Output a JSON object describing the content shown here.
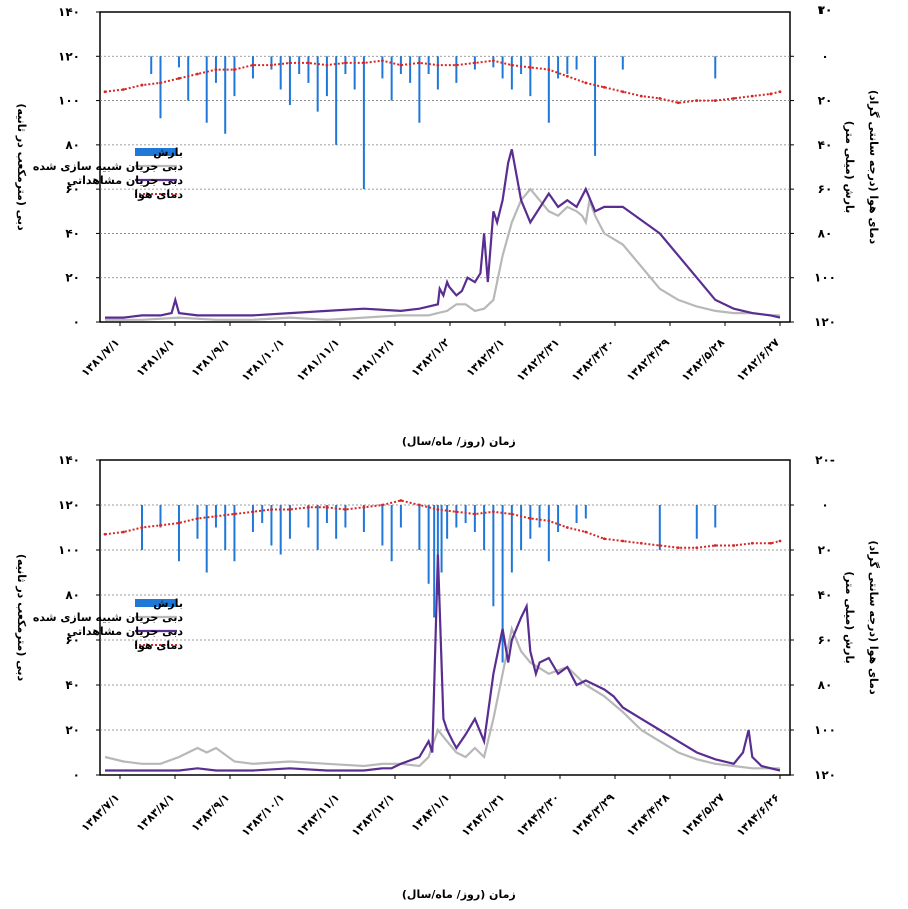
{
  "chart_data": [
    {
      "type": "line",
      "x_tick_labels": [
        "۱۳۸۱/۷/۱",
        "۱۳۸۱/۸/۱",
        "۱۳۸۱/۹/۱",
        "۱۳۸۱/۱۰/۱",
        "۱۳۸۱/۱۱/۱",
        "۱۳۸۱/۱۲/۱",
        "۱۳۸۲/۱/۲",
        "۱۳۸۲/۲/۱",
        "۱۳۸۲/۲/۳۱",
        "۱۳۸۲/۳/۳۰",
        "۱۳۸۲/۴/۲۹",
        "۱۳۸۲/۵/۲۸",
        "۱۳۸۲/۶/۲۷"
      ],
      "xlabel": "زمان (روز/ ماه/سال)",
      "y_left": {
        "label": "دبی (مترمکعب در ثانیه)",
        "ticks": [
          "۰",
          "۲۰",
          "۴۰",
          "۶۰",
          "۸۰",
          "۱۰۰",
          "۱۲۰",
          "۱۴۰"
        ],
        "range": [
          0,
          140
        ]
      },
      "y_right_precip": {
        "label": "بارش (میلی متر)",
        "ticks": [
          "۰",
          "۲۰",
          "۴۰",
          "۶۰",
          "۸۰",
          "۱۰۰",
          "۱۲۰"
        ],
        "range": [
          0,
          120
        ],
        "inverted": true
      },
      "y_right_temp": {
        "label": "دمای هوا (درجه سانتی گراد)",
        "ticks": [
          "۲۰",
          "۱۰"
        ],
        "range": [
          -10,
          30
        ]
      },
      "legend": [
        {
          "label": "بارش",
          "color": "#1f78d8",
          "style": "bar"
        },
        {
          "label": "دبی جریان شبیه سازی شده",
          "color": "#b8b8b8",
          "style": "line"
        },
        {
          "label": "دبی جریان مشاهداتی",
          "color": "#5a2d91",
          "style": "line"
        },
        {
          "label": "دمای هوا",
          "color": "#d62728",
          "style": "dotted"
        }
      ],
      "legend_position": "middle-left",
      "series": [
        {
          "key": "observed",
          "x": [
            0,
            10,
            20,
            30,
            36,
            38,
            40,
            50,
            60,
            80,
            100,
            120,
            140,
            160,
            170,
            180,
            181,
            183,
            185,
            186,
            188,
            190,
            193,
            196,
            200,
            203,
            205,
            207,
            210,
            212,
            215,
            218,
            220,
            225,
            230,
            240,
            245,
            250,
            255,
            260,
            265,
            270,
            280,
            290,
            300,
            310,
            320,
            330,
            340,
            350,
            360,
            365
          ],
          "values": [
            2,
            2,
            3,
            3,
            4,
            10,
            4,
            3,
            3,
            3,
            4,
            5,
            6,
            5,
            6,
            8,
            15,
            12,
            18,
            16,
            14,
            12,
            14,
            20,
            18,
            22,
            40,
            18,
            50,
            45,
            55,
            72,
            78,
            55,
            45,
            58,
            52,
            55,
            52,
            60,
            50,
            52,
            52,
            46,
            40,
            30,
            20,
            10,
            6,
            4,
            3,
            2
          ]
        },
        {
          "key": "simulated",
          "x": [
            0,
            20,
            40,
            60,
            80,
            100,
            120,
            140,
            160,
            175,
            180,
            185,
            190,
            195,
            200,
            205,
            210,
            215,
            220,
            225,
            230,
            235,
            240,
            245,
            250,
            255,
            258,
            260,
            262,
            265,
            270,
            280,
            290,
            300,
            310,
            320,
            330,
            340,
            350,
            360,
            365
          ],
          "values": [
            1,
            1,
            2,
            1,
            1,
            2,
            1,
            2,
            3,
            3,
            4,
            5,
            8,
            8,
            5,
            6,
            10,
            30,
            45,
            55,
            60,
            55,
            50,
            48,
            52,
            50,
            48,
            45,
            55,
            48,
            40,
            35,
            25,
            15,
            10,
            7,
            5,
            4,
            4,
            3,
            3
          ]
        },
        {
          "key": "temperature",
          "x": [
            0,
            10,
            20,
            30,
            40,
            50,
            60,
            70,
            80,
            90,
            100,
            110,
            120,
            130,
            140,
            150,
            160,
            170,
            180,
            190,
            200,
            210,
            220,
            230,
            240,
            250,
            260,
            270,
            280,
            290,
            300,
            310,
            320,
            330,
            340,
            350,
            360,
            365
          ],
          "values": [
            16,
            15,
            13,
            12,
            10,
            8,
            6,
            6,
            4,
            4,
            3,
            3,
            4,
            3,
            3,
            2,
            4,
            3,
            4,
            4,
            3,
            2,
            4,
            5,
            6,
            9,
            12,
            14,
            16,
            18,
            19,
            21,
            20,
            20,
            19,
            18,
            17,
            16
          ]
        },
        {
          "key": "precipitation",
          "x": [
            25,
            30,
            40,
            45,
            55,
            60,
            65,
            70,
            80,
            90,
            95,
            100,
            105,
            110,
            115,
            120,
            125,
            130,
            135,
            140,
            150,
            155,
            160,
            165,
            170,
            175,
            180,
            190,
            200,
            210,
            215,
            220,
            225,
            230,
            240,
            245,
            250,
            255,
            265,
            280,
            330
          ],
          "values": [
            8,
            28,
            5,
            20,
            30,
            12,
            35,
            18,
            10,
            6,
            15,
            22,
            8,
            12,
            25,
            18,
            40,
            8,
            15,
            60,
            10,
            20,
            8,
            12,
            30,
            8,
            15,
            12,
            6,
            5,
            10,
            15,
            8,
            18,
            30,
            10,
            8,
            6,
            45,
            6,
            10
          ]
        }
      ]
    },
    {
      "type": "line",
      "x_tick_labels": [
        "۱۳۸۳/۷/۱",
        "۱۳۸۳/۸/۱",
        "۱۳۸۳/۹/۱",
        "۱۳۸۳/۱۰/۱",
        "۱۳۸۳/۱۱/۱",
        "۱۳۸۳/۱۲/۱",
        "۱۳۸۴/۱/۱",
        "۱۳۸۴/۱/۳۱",
        "۱۳۸۴/۲/۳۰",
        "۱۳۸۴/۳/۲۹",
        "۱۳۸۴/۴/۲۸",
        "۱۳۸۴/۵/۲۷",
        "۱۳۸۴/۶/۲۶"
      ],
      "xlabel": "زمان (روز/ ماه/سال)",
      "y_left": {
        "label": "دبی (مترمکعب در ثانیه)",
        "ticks": [
          "۰",
          "۲۰",
          "۴۰",
          "۶۰",
          "۸۰",
          "۱۰۰",
          "۱۲۰",
          "۱۴۰"
        ],
        "range": [
          0,
          140
        ]
      },
      "y_right_precip": {
        "label": "بارش (میلی متر)",
        "ticks": [
          "۰",
          "۲۰",
          "۴۰",
          "۶۰",
          "۸۰",
          "۱۰۰",
          "۱۲۰"
        ],
        "range": [
          0,
          120
        ],
        "inverted": true
      },
      "y_right_temp": {
        "label": "دمای هوا (درجه سانتی گراد)",
        "ticks": [
          "۲۰-"
        ],
        "range": [
          -10,
          30
        ]
      },
      "legend": [
        {
          "label": "بارش",
          "color": "#1f78d8",
          "style": "bar"
        },
        {
          "label": "دبی جریان شبیه سازی شده",
          "color": "#b8b8b8",
          "style": "line"
        },
        {
          "label": "دبی جریان مشاهداتی",
          "color": "#5a2d91",
          "style": "line"
        },
        {
          "label": "دمای هوا",
          "color": "#d62728",
          "style": "dotted"
        }
      ],
      "legend_position": "middle-left",
      "series": [
        {
          "key": "observed",
          "x": [
            0,
            20,
            40,
            50,
            60,
            80,
            100,
            120,
            140,
            150,
            155,
            160,
            170,
            175,
            177,
            180,
            183,
            185,
            188,
            190,
            195,
            200,
            205,
            210,
            215,
            218,
            220,
            225,
            228,
            230,
            233,
            235,
            240,
            245,
            250,
            255,
            260,
            265,
            270,
            275,
            280,
            290,
            300,
            310,
            320,
            330,
            340,
            345,
            348,
            350,
            355,
            360,
            365
          ],
          "values": [
            2,
            2,
            2,
            3,
            2,
            2,
            3,
            2,
            2,
            3,
            3,
            5,
            8,
            15,
            10,
            98,
            25,
            20,
            15,
            12,
            18,
            25,
            15,
            45,
            65,
            50,
            60,
            70,
            75,
            55,
            45,
            50,
            52,
            45,
            48,
            40,
            42,
            40,
            38,
            35,
            30,
            25,
            20,
            15,
            10,
            7,
            5,
            10,
            20,
            8,
            4,
            3,
            2
          ]
        },
        {
          "key": "simulated",
          "x": [
            0,
            10,
            20,
            30,
            40,
            50,
            55,
            60,
            70,
            80,
            100,
            120,
            140,
            150,
            160,
            170,
            175,
            180,
            185,
            190,
            195,
            200,
            205,
            210,
            215,
            220,
            225,
            230,
            240,
            250,
            260,
            270,
            280,
            290,
            300,
            310,
            320,
            330,
            340,
            350,
            360,
            365
          ],
          "values": [
            8,
            6,
            5,
            5,
            8,
            12,
            10,
            12,
            6,
            5,
            6,
            5,
            4,
            5,
            5,
            4,
            8,
            20,
            15,
            10,
            8,
            12,
            8,
            25,
            45,
            65,
            55,
            50,
            45,
            48,
            40,
            35,
            28,
            20,
            15,
            10,
            7,
            5,
            4,
            3,
            3,
            3
          ]
        },
        {
          "key": "temperature",
          "x": [
            0,
            10,
            20,
            30,
            40,
            50,
            60,
            70,
            80,
            90,
            100,
            110,
            120,
            130,
            140,
            150,
            160,
            170,
            180,
            190,
            200,
            210,
            220,
            230,
            240,
            250,
            260,
            270,
            280,
            290,
            300,
            310,
            320,
            330,
            340,
            350,
            360,
            365
          ],
          "values": [
            13,
            12,
            10,
            9,
            8,
            6,
            5,
            4,
            3,
            2,
            2,
            1,
            1,
            2,
            1,
            0,
            -2,
            0,
            2,
            3,
            4,
            3,
            4,
            6,
            7,
            10,
            12,
            15,
            16,
            17,
            18,
            19,
            19,
            18,
            18,
            17,
            17,
            16
          ]
        },
        {
          "key": "precipitation",
          "x": [
            20,
            30,
            40,
            50,
            55,
            60,
            65,
            70,
            80,
            85,
            90,
            95,
            100,
            110,
            115,
            120,
            125,
            130,
            140,
            150,
            155,
            160,
            170,
            175,
            178,
            180,
            182,
            185,
            190,
            195,
            200,
            205,
            210,
            215,
            220,
            225,
            230,
            235,
            240,
            245,
            255,
            260,
            300,
            320,
            330
          ],
          "values": [
            20,
            10,
            25,
            15,
            30,
            10,
            20,
            25,
            12,
            8,
            18,
            22,
            15,
            10,
            20,
            8,
            15,
            10,
            12,
            18,
            25,
            10,
            20,
            35,
            50,
            40,
            30,
            15,
            10,
            8,
            12,
            20,
            45,
            70,
            30,
            20,
            15,
            10,
            25,
            12,
            8,
            6,
            20,
            15,
            10
          ]
        }
      ]
    }
  ]
}
